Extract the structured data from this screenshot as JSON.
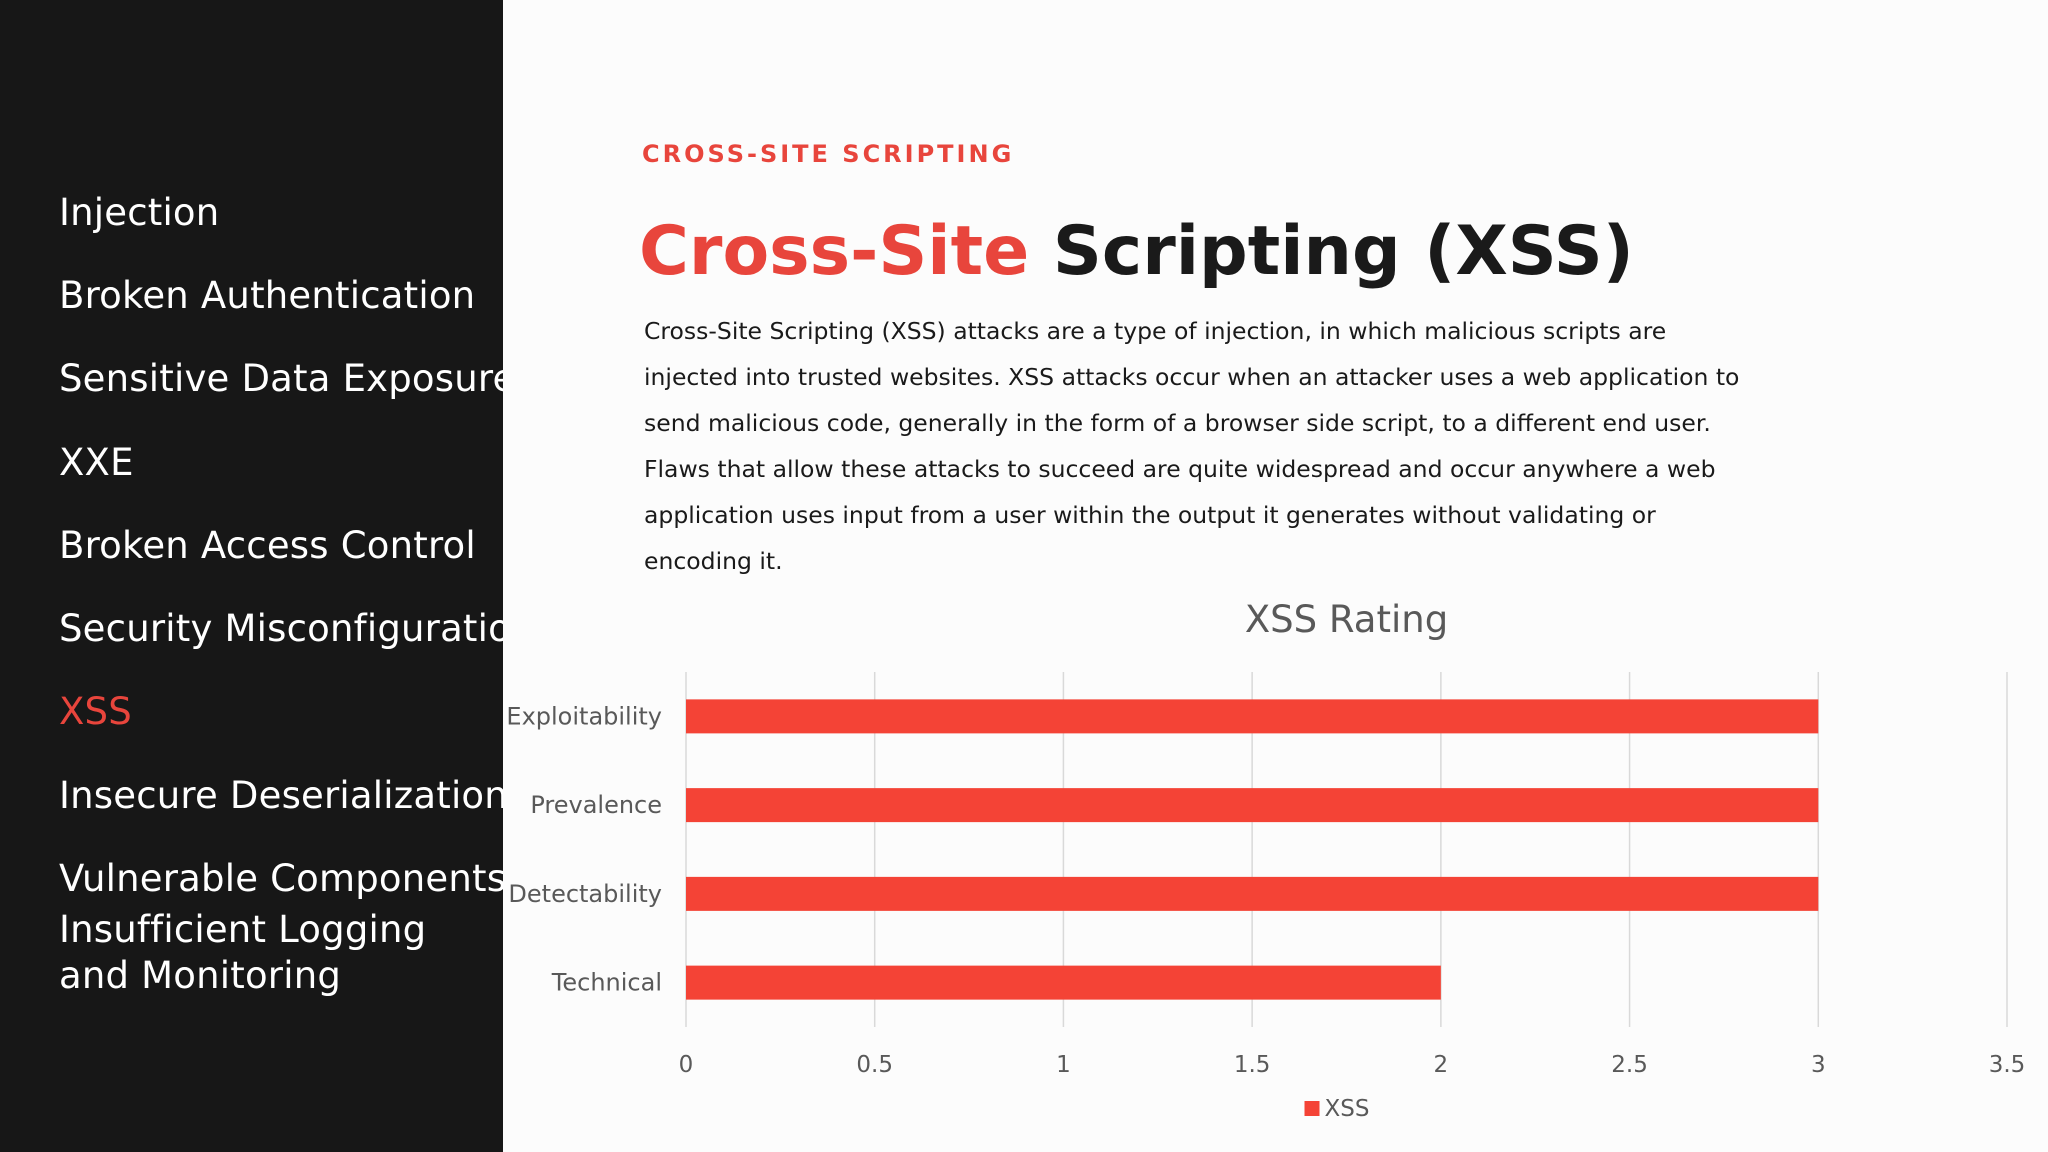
{
  "sidebar": {
    "items": [
      {
        "label": "Injection",
        "active": false
      },
      {
        "label": "Broken Authentication",
        "active": false
      },
      {
        "label": "Sensitive Data Exposure",
        "active": false
      },
      {
        "label": "XXE",
        "active": false
      },
      {
        "label": "Broken Access Control",
        "active": false
      },
      {
        "label": "Security Misconfiguration",
        "active": false
      },
      {
        "label": "XSS",
        "active": true
      },
      {
        "label": "Insecure Deserialization",
        "active": false
      },
      {
        "label": "Vulnerable Components",
        "active": false
      },
      {
        "label": "Insufficient Logging and Monitoring",
        "active": false
      }
    ]
  },
  "main": {
    "eyebrow": "CROSS-SITE SCRIPTING",
    "title_accent": "Cross-Site",
    "title_rest": " Scripting (XSS)",
    "description": "Cross-Site Scripting (XSS) attacks are a type of injection, in which malicious scripts are injected into trusted websites. XSS attacks occur when an attacker uses a web application to send malicious code, generally in the form of a browser side script, to a different end user. Flaws that allow these attacks to succeed are quite widespread and occur anywhere a web application uses input from a user within the output it generates without validating or encoding it."
  },
  "colors": {
    "accent": "#e8453c",
    "bar": "#f44336",
    "sidebar_bg": "#171717",
    "grid": "#d9d9d9",
    "axis_text": "#595959"
  },
  "chart_data": {
    "type": "bar",
    "orientation": "horizontal",
    "title": "XSS Rating",
    "categories": [
      "Exploitability",
      "Prevalence",
      "Detectability",
      "Technical"
    ],
    "series": [
      {
        "name": "XSS",
        "values": [
          3,
          3,
          3,
          2
        ]
      }
    ],
    "xlim": [
      0,
      3.5
    ],
    "xticks": [
      "0",
      "0.5",
      "1",
      "1.5",
      "2",
      "2.5",
      "3",
      "3.5"
    ],
    "grid": true,
    "legend": "bottom"
  }
}
